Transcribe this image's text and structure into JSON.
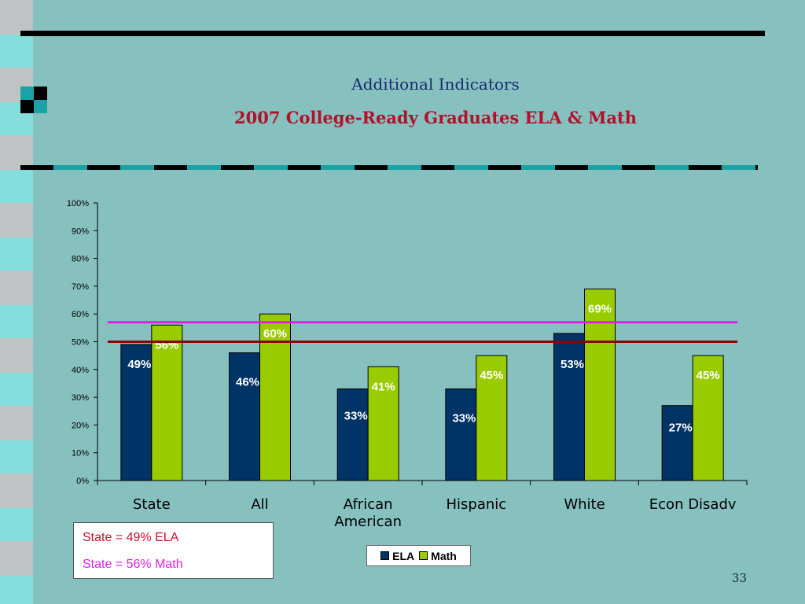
{
  "slide": {
    "subtitle": "Additional Indicators",
    "title": "2007 College-Ready Graduates ELA & Math",
    "page_number": "33",
    "note_lines": [
      "State = 49% ELA",
      "State = 56% Math"
    ]
  },
  "colors": {
    "background": "#86c0bf",
    "ela": "#003366",
    "math": "#99cc00",
    "ela_reference": "#8b0000",
    "math_reference": "#e020e0",
    "title": "#b3102a"
  },
  "chart_data": {
    "type": "bar",
    "categories": [
      "State",
      "All",
      "African\nAmerican",
      "Hispanic",
      "White",
      "Econ Disadv"
    ],
    "series": [
      {
        "name": "ELA",
        "values": [
          49,
          46,
          33,
          33,
          53,
          27
        ],
        "labels": [
          "49%",
          "46%",
          "33%",
          "33%",
          "53%",
          "27%"
        ]
      },
      {
        "name": "Math",
        "values": [
          56,
          60,
          41,
          45,
          69,
          45
        ],
        "labels": [
          "56%",
          "60%",
          "41%",
          "45%",
          "69%",
          "45%"
        ]
      }
    ],
    "y_ticks": [
      "0%",
      "10%",
      "20%",
      "30%",
      "40%",
      "50%",
      "60%",
      "70%",
      "80%",
      "90%",
      "100%"
    ],
    "ylim": [
      0,
      100
    ],
    "reference_lines": [
      {
        "series": "ELA",
        "value": 50
      },
      {
        "series": "Math",
        "value": 57
      }
    ],
    "legend_position": "bottom",
    "grid": false
  }
}
